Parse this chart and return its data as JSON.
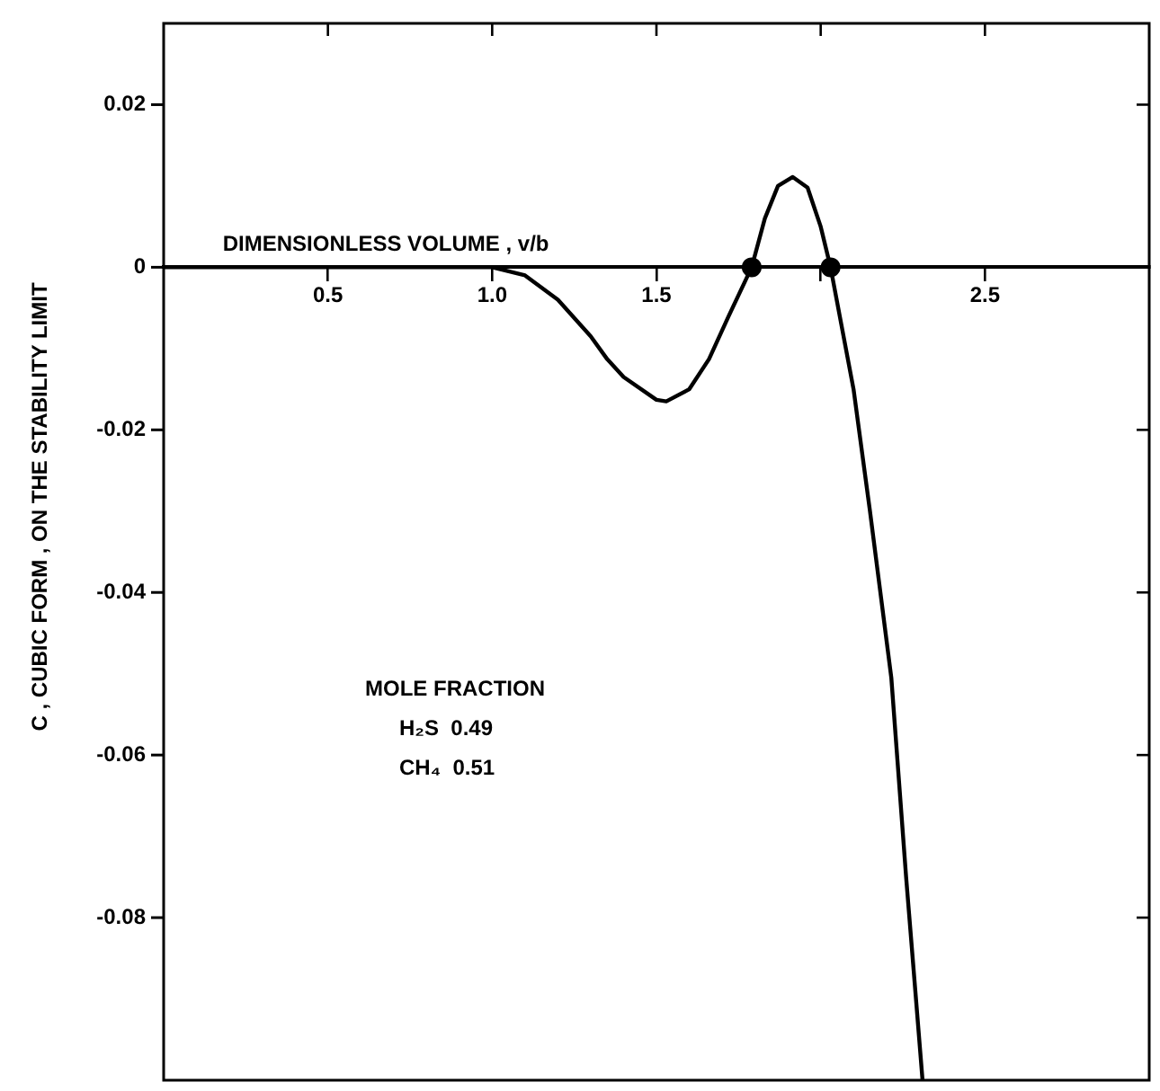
{
  "chart_data": {
    "type": "line",
    "xlabel": "DIMENSIONLESS VOLUME , v/b",
    "ylabel": "C , CUBIC FORM , ON THE STABILITY LIMIT",
    "xlim": [
      0,
      3.0
    ],
    "ylim": [
      -0.1,
      0.03
    ],
    "xticks": [
      0.5,
      {
        "value": 1,
        "label": "1.0"
      },
      1.5,
      {
        "value": 2,
        "label": null
      },
      2.5
    ],
    "yticks": [
      -0.08,
      -0.06,
      -0.04,
      -0.02,
      0,
      0.02
    ],
    "tick_labels": "xy",
    "grid": false,
    "legend": false,
    "line_style": "solid",
    "annotations": [
      "MOLE FRACTION",
      "H₂S  0.49",
      "CH₄  0.51"
    ],
    "series": [
      {
        "color": "#000000",
        "marker": "none",
        "x": [
          0,
          0.5,
          1.0,
          1.1,
          1.2,
          1.3,
          1.35,
          1.4,
          1.5,
          1.53,
          1.6,
          1.66,
          1.72,
          1.79,
          1.83,
          1.87,
          1.915,
          1.96,
          2.0,
          2.03,
          2.1,
          2.15,
          2.215,
          2.26,
          2.31
        ],
        "values": [
          0,
          0,
          0,
          -0.001,
          -0.004,
          -0.0085,
          -0.0113,
          -0.0135,
          -0.0163,
          -0.0165,
          -0.015,
          -0.0113,
          -0.006,
          0,
          0.006,
          0.01,
          0.0111,
          0.0098,
          0.005,
          0,
          -0.015,
          -0.03,
          -0.0505,
          -0.075,
          -0.1
        ]
      },
      {
        "type": "scatter",
        "color": "#000000",
        "marker": "circle",
        "x": [
          1.79,
          2.03
        ],
        "values": [
          0,
          0
        ]
      }
    ]
  }
}
